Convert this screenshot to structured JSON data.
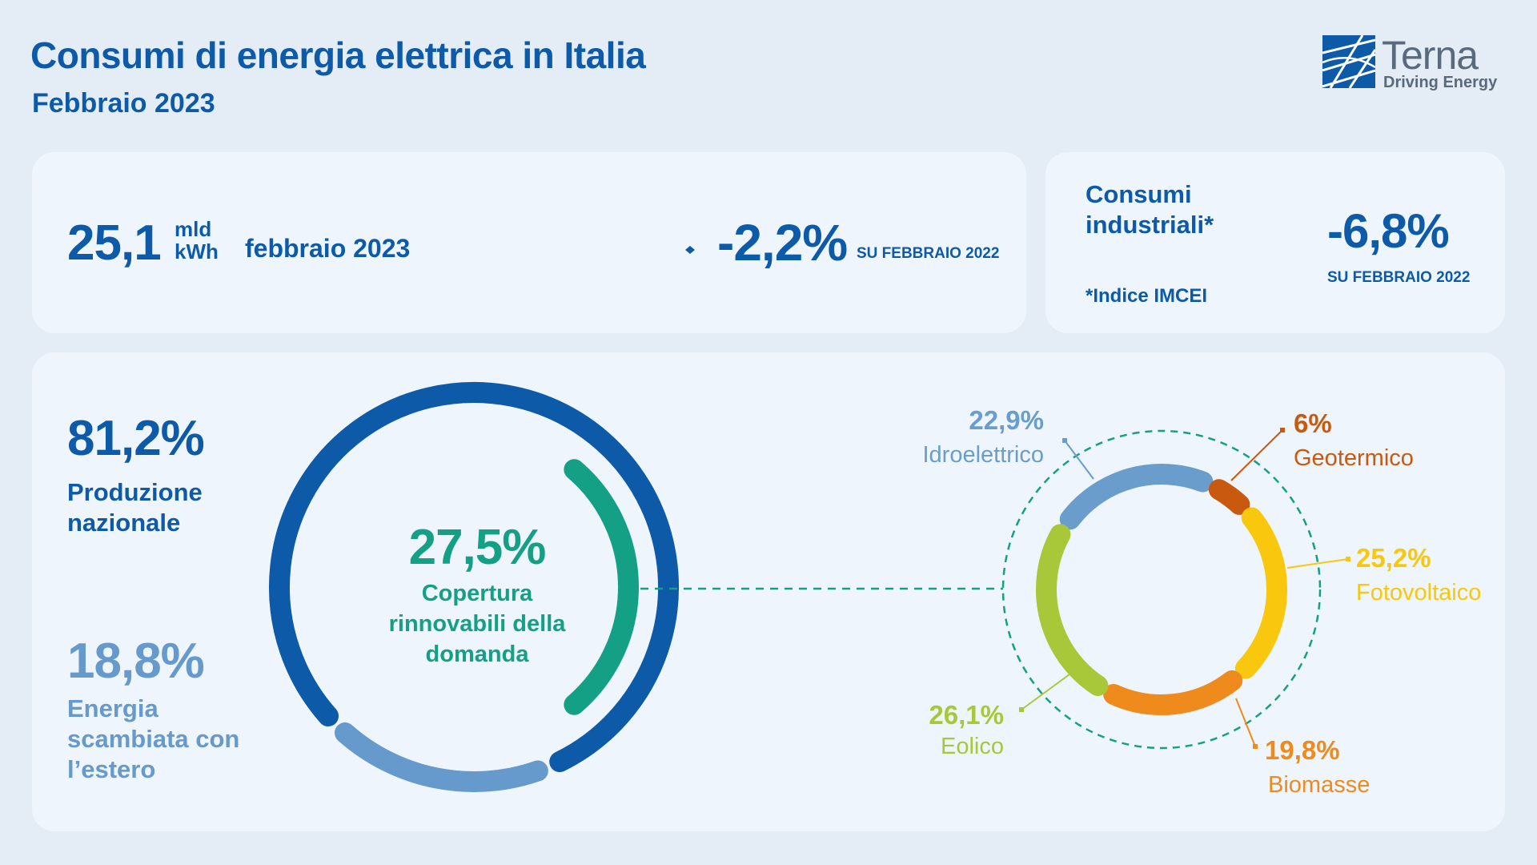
{
  "header": {
    "title": "Consumi di energia elettrica in Italia",
    "subtitle": "Febbraio 2023"
  },
  "logo": {
    "name": "Terna",
    "tagline": "Driving Energy"
  },
  "kpi": {
    "value": "25,1",
    "unit": "mld\nkWh",
    "period": "febbraio 2023",
    "delta": "-2,2%",
    "delta_ref": "SU FEBBRAIO 2022"
  },
  "industrial": {
    "label": "Consumi industriali*",
    "delta": "-6,8%",
    "delta_ref": "SU FEBBRAIO 2022",
    "note": "*Indice IMCEI"
  },
  "colors": {
    "brand_blue": "#0d5aa8",
    "light_blue": "#6699cc",
    "green": "#14a085",
    "idro": "#6a9dcc",
    "geo": "#c8590f",
    "foto": "#f9c80e",
    "bio": "#ef8a1c",
    "eolico": "#a8c83a",
    "background": "#e4edf6",
    "card": "#eef5fc"
  },
  "chart_data": [
    {
      "type": "pie",
      "labels": [
        "Produzione nazionale",
        "Energia scambiata con l’estero"
      ],
      "values": [
        81.2,
        18.8
      ],
      "value_labels": [
        "81,2%",
        "18,8%"
      ],
      "inner": {
        "value": 27.5,
        "value_label": "27,5%",
        "label": "Copertura rinnovabili della domanda"
      }
    },
    {
      "type": "pie",
      "labels": [
        "Idroelettrico",
        "Geotermico",
        "Fotovoltaico",
        "Biomasse",
        "Eolico"
      ],
      "values": [
        22.9,
        6,
        25.2,
        19.8,
        26.1
      ],
      "value_labels": [
        "22,9%",
        "6%",
        "25,2%",
        "19,8%",
        "26,1%"
      ]
    }
  ]
}
